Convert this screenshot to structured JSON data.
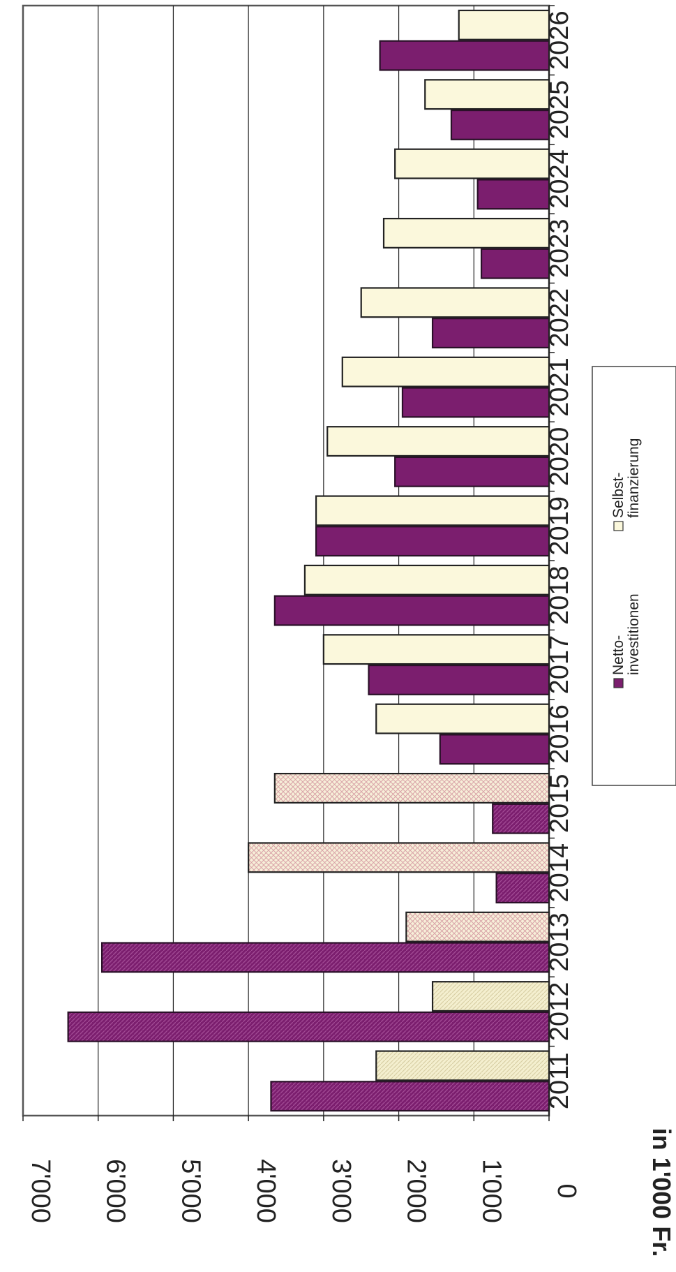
{
  "chart_data": {
    "type": "bar",
    "orientation": "horizontal",
    "title": "",
    "ylabel": "in 1'000 Fr.",
    "xlabel": "",
    "categories": [
      "2011",
      "2012",
      "2013",
      "2014",
      "2015",
      "2016",
      "2017",
      "2018",
      "2019",
      "2020",
      "2021",
      "2022",
      "2023",
      "2024",
      "2025",
      "2026"
    ],
    "value_axis": {
      "min": 0,
      "max": 7000,
      "ticks": [
        0,
        1000,
        2000,
        3000,
        4000,
        5000,
        6000,
        7000
      ],
      "tick_labels": [
        "0",
        "1'000",
        "2'000",
        "3'000",
        "4'000",
        "5'000",
        "6'000",
        "7'000"
      ]
    },
    "grid": true,
    "series": [
      {
        "name": "Netto-\ninvestitionen",
        "color": "#7b1e6e",
        "values": [
          3700,
          6400,
          5950,
          700,
          750,
          1450,
          2400,
          3650,
          3100,
          2050,
          1950,
          1550,
          900,
          950,
          1300,
          2250
        ]
      },
      {
        "name": "Selbst-\nfinanzierung",
        "color": "#fbf8dc",
        "values": [
          2300,
          1550,
          1900,
          4000,
          3650,
          2300,
          3000,
          3250,
          3100,
          2950,
          2750,
          2500,
          2200,
          2050,
          1650,
          1200
        ]
      }
    ],
    "hatched_categories": [
      "2011",
      "2012",
      "2013",
      "2014",
      "2015"
    ],
    "legend_position": "right"
  }
}
